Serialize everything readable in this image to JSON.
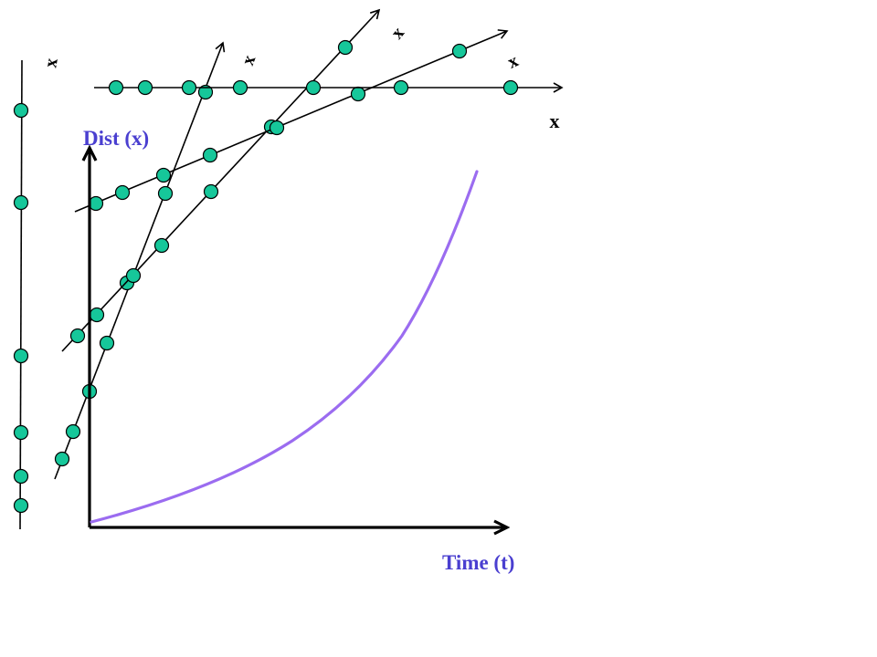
{
  "axes": {
    "y_label": "Dist (x)",
    "x_label": "Time (t)"
  },
  "colors": {
    "curve": "#9b6cf0",
    "axis_label": "#4a3fd0",
    "dot_fill": "#16c79a",
    "line": "#000000"
  },
  "rotated_lines": [
    {
      "id": "vertical",
      "label": "x"
    },
    {
      "id": "steep",
      "label": "x"
    },
    {
      "id": "medium",
      "label": "x"
    },
    {
      "id": "shallow",
      "label": "x"
    },
    {
      "id": "horizontal",
      "label": "x"
    }
  ]
}
